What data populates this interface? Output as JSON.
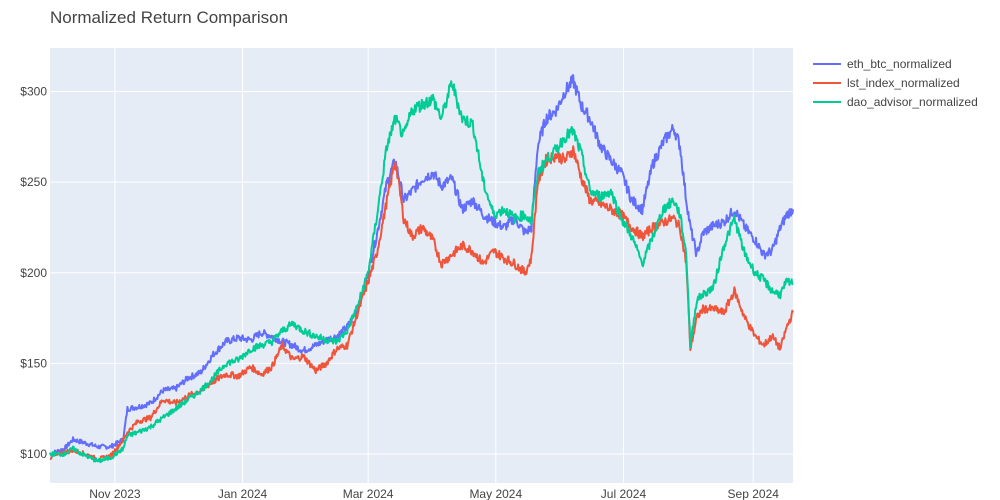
{
  "chart_data": {
    "type": "line",
    "title": "Normalized Return Comparison",
    "xlabel": "",
    "ylabel": "",
    "x_start": "2023-10-01",
    "x_end": "2024-09-20",
    "x_ticks": [
      {
        "date": "2023-11-01",
        "label": "Nov 2023"
      },
      {
        "date": "2024-01-01",
        "label": "Jan 2024"
      },
      {
        "date": "2024-03-01",
        "label": "Mar 2024"
      },
      {
        "date": "2024-05-01",
        "label": "May 2024"
      },
      {
        "date": "2024-07-01",
        "label": "Jul 2024"
      },
      {
        "date": "2024-09-01",
        "label": "Sep 2024"
      }
    ],
    "ylim": [
      84,
      324
    ],
    "y_ticks": [
      {
        "value": 100,
        "label": "$100"
      },
      {
        "value": 150,
        "label": "$150"
      },
      {
        "value": 200,
        "label": "$200"
      },
      {
        "value": 250,
        "label": "$250"
      },
      {
        "value": 300,
        "label": "$300"
      }
    ],
    "grid": true,
    "legend_position": "top-right",
    "series": [
      {
        "name": "eth_btc_normalized",
        "color": "#636efa",
        "points": [
          [
            "2023-10-01",
            100
          ],
          [
            "2023-10-08",
            103
          ],
          [
            "2023-10-12",
            108
          ],
          [
            "2023-10-18",
            106
          ],
          [
            "2023-10-24",
            104
          ],
          [
            "2023-10-30",
            104
          ],
          [
            "2023-11-05",
            108
          ],
          [
            "2023-11-07",
            125
          ],
          [
            "2023-11-12",
            126
          ],
          [
            "2023-11-18",
            128
          ],
          [
            "2023-11-24",
            135
          ],
          [
            "2023-11-30",
            136
          ],
          [
            "2023-12-06",
            142
          ],
          [
            "2023-12-12",
            145
          ],
          [
            "2023-12-18",
            155
          ],
          [
            "2023-12-24",
            162
          ],
          [
            "2023-12-30",
            164
          ],
          [
            "2024-01-05",
            163
          ],
          [
            "2024-01-10",
            167
          ],
          [
            "2024-01-15",
            165
          ],
          [
            "2024-01-20",
            162
          ],
          [
            "2024-01-25",
            160
          ],
          [
            "2024-01-30",
            157
          ],
          [
            "2024-02-05",
            160
          ],
          [
            "2024-02-10",
            163
          ],
          [
            "2024-02-15",
            165
          ],
          [
            "2024-02-20",
            170
          ],
          [
            "2024-02-25",
            180
          ],
          [
            "2024-03-01",
            200
          ],
          [
            "2024-03-05",
            220
          ],
          [
            "2024-03-10",
            250
          ],
          [
            "2024-03-14",
            262
          ],
          [
            "2024-03-18",
            240
          ],
          [
            "2024-03-22",
            245
          ],
          [
            "2024-03-27",
            252
          ],
          [
            "2024-04-01",
            255
          ],
          [
            "2024-04-05",
            248
          ],
          [
            "2024-04-10",
            252
          ],
          [
            "2024-04-15",
            235
          ],
          [
            "2024-04-20",
            240
          ],
          [
            "2024-04-25",
            232
          ],
          [
            "2024-04-30",
            228
          ],
          [
            "2024-05-05",
            225
          ],
          [
            "2024-05-10",
            230
          ],
          [
            "2024-05-15",
            222
          ],
          [
            "2024-05-18",
            225
          ],
          [
            "2024-05-21",
            270
          ],
          [
            "2024-05-25",
            285
          ],
          [
            "2024-05-30",
            290
          ],
          [
            "2024-06-03",
            300
          ],
          [
            "2024-06-07",
            306
          ],
          [
            "2024-06-11",
            292
          ],
          [
            "2024-06-15",
            285
          ],
          [
            "2024-06-20",
            270
          ],
          [
            "2024-06-25",
            262
          ],
          [
            "2024-06-30",
            255
          ],
          [
            "2024-07-05",
            240
          ],
          [
            "2024-07-10",
            235
          ],
          [
            "2024-07-15",
            260
          ],
          [
            "2024-07-20",
            272
          ],
          [
            "2024-07-25",
            280
          ],
          [
            "2024-07-28",
            270
          ],
          [
            "2024-07-31",
            240
          ],
          [
            "2024-08-02",
            225
          ],
          [
            "2024-08-05",
            210
          ],
          [
            "2024-08-08",
            222
          ],
          [
            "2024-08-13",
            226
          ],
          [
            "2024-08-18",
            228
          ],
          [
            "2024-08-23",
            235
          ],
          [
            "2024-08-28",
            225
          ],
          [
            "2024-09-02",
            218
          ],
          [
            "2024-09-06",
            210
          ],
          [
            "2024-09-10",
            212
          ],
          [
            "2024-09-14",
            225
          ],
          [
            "2024-09-17",
            232
          ],
          [
            "2024-09-20",
            235
          ]
        ]
      },
      {
        "name": "lst_index_normalized",
        "color": "#ef553b",
        "points": [
          [
            "2023-10-01",
            98
          ],
          [
            "2023-10-08",
            101
          ],
          [
            "2023-10-12",
            102
          ],
          [
            "2023-10-18",
            100
          ],
          [
            "2023-10-24",
            97
          ],
          [
            "2023-10-30",
            99
          ],
          [
            "2023-11-05",
            108
          ],
          [
            "2023-11-07",
            112
          ],
          [
            "2023-11-12",
            118
          ],
          [
            "2023-11-18",
            120
          ],
          [
            "2023-11-24",
            130
          ],
          [
            "2023-11-30",
            128
          ],
          [
            "2023-12-06",
            132
          ],
          [
            "2023-12-12",
            135
          ],
          [
            "2023-12-18",
            140
          ],
          [
            "2023-12-24",
            144
          ],
          [
            "2023-12-30",
            143
          ],
          [
            "2024-01-05",
            148
          ],
          [
            "2024-01-10",
            144
          ],
          [
            "2024-01-15",
            148
          ],
          [
            "2024-01-20",
            160
          ],
          [
            "2024-01-25",
            152
          ],
          [
            "2024-01-30",
            154
          ],
          [
            "2024-02-05",
            146
          ],
          [
            "2024-02-10",
            150
          ],
          [
            "2024-02-15",
            158
          ],
          [
            "2024-02-20",
            160
          ],
          [
            "2024-02-25",
            178
          ],
          [
            "2024-03-01",
            195
          ],
          [
            "2024-03-05",
            210
          ],
          [
            "2024-03-10",
            240
          ],
          [
            "2024-03-14",
            262
          ],
          [
            "2024-03-18",
            230
          ],
          [
            "2024-03-22",
            220
          ],
          [
            "2024-03-27",
            225
          ],
          [
            "2024-04-01",
            218
          ],
          [
            "2024-04-05",
            205
          ],
          [
            "2024-04-10",
            210
          ],
          [
            "2024-04-15",
            215
          ],
          [
            "2024-04-20",
            212
          ],
          [
            "2024-04-25",
            205
          ],
          [
            "2024-04-30",
            212
          ],
          [
            "2024-05-05",
            208
          ],
          [
            "2024-05-10",
            205
          ],
          [
            "2024-05-15",
            200
          ],
          [
            "2024-05-18",
            208
          ],
          [
            "2024-05-21",
            250
          ],
          [
            "2024-05-25",
            262
          ],
          [
            "2024-05-30",
            265
          ],
          [
            "2024-06-03",
            262
          ],
          [
            "2024-06-07",
            268
          ],
          [
            "2024-06-11",
            252
          ],
          [
            "2024-06-15",
            240
          ],
          [
            "2024-06-20",
            238
          ],
          [
            "2024-06-25",
            235
          ],
          [
            "2024-06-30",
            232
          ],
          [
            "2024-07-05",
            225
          ],
          [
            "2024-07-10",
            220
          ],
          [
            "2024-07-15",
            225
          ],
          [
            "2024-07-20",
            228
          ],
          [
            "2024-07-25",
            230
          ],
          [
            "2024-07-28",
            225
          ],
          [
            "2024-07-31",
            205
          ],
          [
            "2024-08-02",
            158
          ],
          [
            "2024-08-05",
            175
          ],
          [
            "2024-08-08",
            180
          ],
          [
            "2024-08-13",
            180
          ],
          [
            "2024-08-18",
            178
          ],
          [
            "2024-08-23",
            190
          ],
          [
            "2024-08-28",
            175
          ],
          [
            "2024-09-02",
            165
          ],
          [
            "2024-09-06",
            160
          ],
          [
            "2024-09-10",
            165
          ],
          [
            "2024-09-14",
            158
          ],
          [
            "2024-09-17",
            170
          ],
          [
            "2024-09-20",
            178
          ]
        ]
      },
      {
        "name": "dao_advisor_normalized",
        "color": "#00cc96",
        "points": [
          [
            "2023-10-01",
            100
          ],
          [
            "2023-10-08",
            100
          ],
          [
            "2023-10-12",
            103
          ],
          [
            "2023-10-18",
            99
          ],
          [
            "2023-10-24",
            96
          ],
          [
            "2023-10-30",
            98
          ],
          [
            "2023-11-05",
            103
          ],
          [
            "2023-11-07",
            110
          ],
          [
            "2023-11-12",
            112
          ],
          [
            "2023-11-18",
            115
          ],
          [
            "2023-11-24",
            120
          ],
          [
            "2023-11-30",
            125
          ],
          [
            "2023-12-06",
            130
          ],
          [
            "2023-12-12",
            135
          ],
          [
            "2023-12-18",
            142
          ],
          [
            "2023-12-24",
            150
          ],
          [
            "2023-12-30",
            152
          ],
          [
            "2024-01-05",
            158
          ],
          [
            "2024-01-10",
            160
          ],
          [
            "2024-01-15",
            162
          ],
          [
            "2024-01-20",
            168
          ],
          [
            "2024-01-25",
            172
          ],
          [
            "2024-01-30",
            168
          ],
          [
            "2024-02-05",
            165
          ],
          [
            "2024-02-10",
            163
          ],
          [
            "2024-02-15",
            162
          ],
          [
            "2024-02-20",
            168
          ],
          [
            "2024-02-25",
            182
          ],
          [
            "2024-03-01",
            200
          ],
          [
            "2024-03-05",
            230
          ],
          [
            "2024-03-10",
            270
          ],
          [
            "2024-03-14",
            285
          ],
          [
            "2024-03-18",
            275
          ],
          [
            "2024-03-22",
            290
          ],
          [
            "2024-03-27",
            293
          ],
          [
            "2024-04-01",
            296
          ],
          [
            "2024-04-05",
            285
          ],
          [
            "2024-04-10",
            305
          ],
          [
            "2024-04-15",
            285
          ],
          [
            "2024-04-20",
            282
          ],
          [
            "2024-04-25",
            250
          ],
          [
            "2024-04-30",
            232
          ],
          [
            "2024-05-05",
            235
          ],
          [
            "2024-05-10",
            230
          ],
          [
            "2024-05-15",
            232
          ],
          [
            "2024-05-18",
            228
          ],
          [
            "2024-05-21",
            255
          ],
          [
            "2024-05-25",
            262
          ],
          [
            "2024-05-30",
            268
          ],
          [
            "2024-06-03",
            275
          ],
          [
            "2024-06-07",
            278
          ],
          [
            "2024-06-11",
            265
          ],
          [
            "2024-06-15",
            245
          ],
          [
            "2024-06-20",
            242
          ],
          [
            "2024-06-25",
            245
          ],
          [
            "2024-06-30",
            230
          ],
          [
            "2024-07-05",
            220
          ],
          [
            "2024-07-10",
            205
          ],
          [
            "2024-07-15",
            220
          ],
          [
            "2024-07-20",
            235
          ],
          [
            "2024-07-25",
            240
          ],
          [
            "2024-07-28",
            232
          ],
          [
            "2024-07-31",
            210
          ],
          [
            "2024-08-02",
            160
          ],
          [
            "2024-08-05",
            185
          ],
          [
            "2024-08-08",
            188
          ],
          [
            "2024-08-13",
            192
          ],
          [
            "2024-08-18",
            215
          ],
          [
            "2024-08-23",
            230
          ],
          [
            "2024-08-28",
            210
          ],
          [
            "2024-09-02",
            200
          ],
          [
            "2024-09-06",
            196
          ],
          [
            "2024-09-10",
            190
          ],
          [
            "2024-09-14",
            188
          ],
          [
            "2024-09-17",
            195
          ],
          [
            "2024-09-20",
            194
          ]
        ]
      }
    ]
  }
}
